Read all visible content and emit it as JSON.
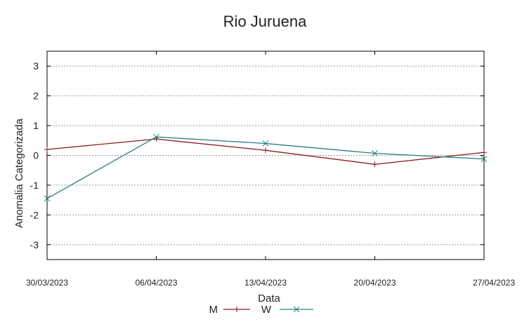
{
  "chart_data": {
    "type": "line",
    "title": "Rio Juruena",
    "xlabel": "Data",
    "ylabel": "Anomalia Categorizada",
    "x": [
      "30/03/2023",
      "06/04/2023",
      "13/04/2023",
      "20/04/2023",
      "27/04/2023"
    ],
    "ylim": [
      -3.5,
      3.5
    ],
    "yticks": [
      -3,
      -2,
      -1,
      0,
      1,
      2,
      3
    ],
    "grid": true,
    "legend_position": "bottom",
    "series": [
      {
        "name": "M",
        "color": "#8b1a1a",
        "marker": "plus",
        "values": [
          0.2,
          0.55,
          0.17,
          -0.3,
          0.1
        ]
      },
      {
        "name": "W",
        "color": "#2a7f7f",
        "marker": "cross",
        "values": [
          -1.45,
          0.62,
          0.4,
          0.07,
          -0.12
        ]
      }
    ]
  }
}
